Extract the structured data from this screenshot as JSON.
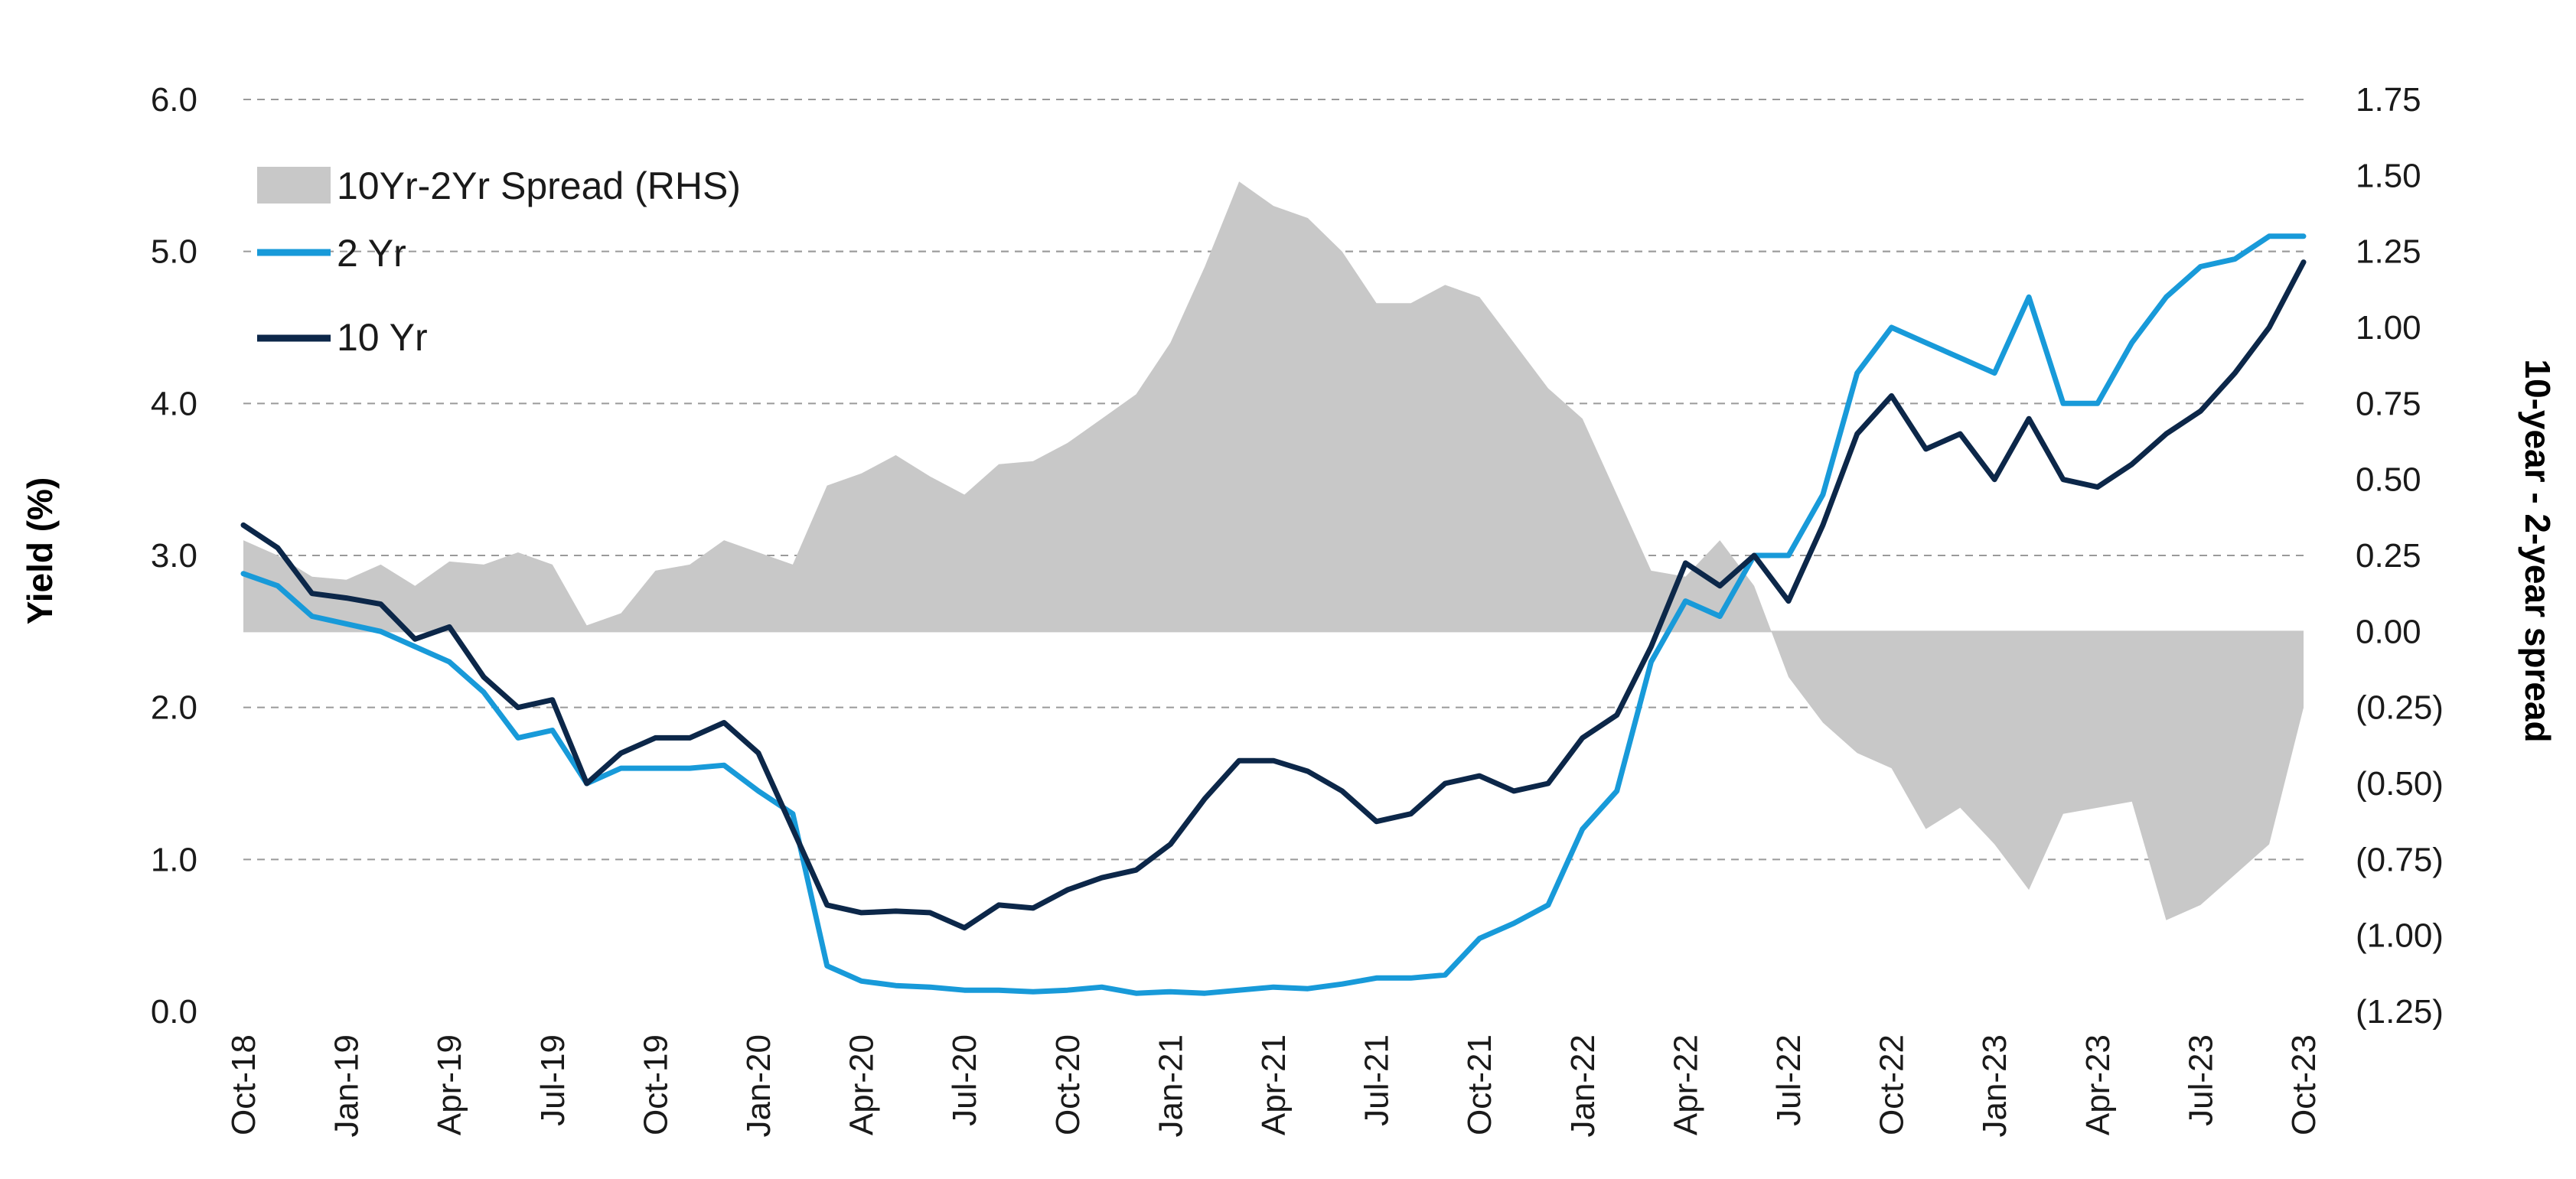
{
  "chart_data": {
    "type": "line",
    "legend_placement": "top-left",
    "grid": true,
    "y_left": {
      "label": "Yield (%)",
      "range": [
        0,
        6
      ],
      "ticks": [
        0,
        1,
        2,
        3,
        4,
        5,
        6
      ],
      "tick_labels": [
        "0.0",
        "1.0",
        "2.0",
        "3.0",
        "4.0",
        "5.0",
        "6.0"
      ]
    },
    "y_right": {
      "label": "10-year - 2-year spread",
      "range": [
        -1.25,
        1.75
      ],
      "ticks": [
        1.75,
        1.5,
        1.25,
        1.0,
        0.75,
        0.5,
        0.25,
        0.0,
        -0.25,
        -0.5,
        -0.75,
        -1.0,
        -1.25
      ],
      "tick_labels": [
        "1.75",
        "1.50",
        "1.25",
        "1.00",
        "0.75",
        "0.50",
        "0.25",
        "0.00",
        "(0.25)",
        "(0.50)",
        "(0.75)",
        "(1.00)",
        "(1.25)"
      ]
    },
    "x_axis": {
      "type": "date",
      "range": [
        "2018-10",
        "2023-10"
      ],
      "ticks": [
        "2018-10",
        "2019-01",
        "2019-04",
        "2019-07",
        "2019-10",
        "2020-01",
        "2020-04",
        "2020-07",
        "2020-10",
        "2021-01",
        "2021-04",
        "2021-07",
        "2021-10",
        "2022-01",
        "2022-04",
        "2022-07",
        "2022-10",
        "2023-01",
        "2023-04",
        "2023-07",
        "2023-10"
      ],
      "tick_labels": [
        "Oct-18",
        "Jan-19",
        "Apr-19",
        "Jul-19",
        "Oct-19",
        "Jan-20",
        "Apr-20",
        "Jul-20",
        "Oct-20",
        "Jan-21",
        "Apr-21",
        "Jul-21",
        "Oct-21",
        "Jan-22",
        "Apr-22",
        "Jul-22",
        "Oct-22",
        "Jan-23",
        "Apr-23",
        "Jul-23",
        "Oct-23"
      ]
    },
    "x": [
      "2018-10",
      "2018-11",
      "2018-12",
      "2019-01",
      "2019-02",
      "2019-03",
      "2019-04",
      "2019-05",
      "2019-06",
      "2019-07",
      "2019-08",
      "2019-09",
      "2019-10",
      "2019-11",
      "2019-12",
      "2020-01",
      "2020-02",
      "2020-03",
      "2020-04",
      "2020-05",
      "2020-06",
      "2020-07",
      "2020-08",
      "2020-09",
      "2020-10",
      "2020-11",
      "2020-12",
      "2021-01",
      "2021-02",
      "2021-03",
      "2021-04",
      "2021-05",
      "2021-06",
      "2021-07",
      "2021-08",
      "2021-09",
      "2021-10",
      "2021-11",
      "2021-12",
      "2022-01",
      "2022-02",
      "2022-03",
      "2022-04",
      "2022-05",
      "2022-06",
      "2022-07",
      "2022-08",
      "2022-09",
      "2022-10",
      "2022-11",
      "2022-12",
      "2023-01",
      "2023-02",
      "2023-03",
      "2023-04",
      "2023-05",
      "2023-06",
      "2023-07",
      "2023-08",
      "2023-09",
      "2023-10"
    ],
    "series": [
      {
        "name": "10Yr-2Yr Spread (RHS)",
        "type": "area",
        "axis": "right",
        "color": "#c8c8c8",
        "values": [
          0.3,
          0.25,
          0.18,
          0.17,
          0.22,
          0.15,
          0.23,
          0.22,
          0.26,
          0.22,
          0.02,
          0.06,
          0.2,
          0.22,
          0.3,
          0.26,
          0.22,
          0.48,
          0.52,
          0.58,
          0.51,
          0.45,
          0.55,
          0.56,
          0.62,
          0.7,
          0.78,
          0.95,
          1.2,
          1.48,
          1.4,
          1.36,
          1.25,
          1.08,
          1.08,
          1.14,
          1.1,
          0.95,
          0.8,
          0.7,
          0.45,
          0.2,
          0.18,
          0.3,
          0.15,
          -0.15,
          -0.3,
          -0.4,
          -0.45,
          -0.65,
          -0.58,
          -0.7,
          -0.85,
          -0.6,
          -0.58,
          -0.56,
          -0.95,
          -0.9,
          -0.8,
          -0.7,
          -0.25
        ]
      },
      {
        "name": "2 Yr",
        "type": "line",
        "axis": "left",
        "color": "#189ad9",
        "values": [
          2.88,
          2.8,
          2.6,
          2.55,
          2.5,
          2.4,
          2.3,
          2.1,
          1.8,
          1.85,
          1.5,
          1.6,
          1.6,
          1.6,
          1.62,
          1.45,
          1.3,
          0.3,
          0.2,
          0.17,
          0.16,
          0.14,
          0.14,
          0.13,
          0.14,
          0.16,
          0.12,
          0.13,
          0.12,
          0.14,
          0.16,
          0.15,
          0.18,
          0.22,
          0.22,
          0.24,
          0.48,
          0.58,
          0.7,
          1.2,
          1.45,
          2.3,
          2.7,
          2.6,
          3.0,
          3.0,
          3.4,
          4.2,
          4.5,
          4.4,
          4.3,
          4.2,
          4.7,
          4.0,
          4.0,
          4.4,
          4.7,
          4.9,
          4.95,
          5.1,
          5.1
        ]
      },
      {
        "name": "10 Yr",
        "type": "line",
        "axis": "left",
        "color": "#0c2749",
        "values": [
          3.2,
          3.05,
          2.75,
          2.72,
          2.68,
          2.45,
          2.53,
          2.2,
          2.0,
          2.05,
          1.5,
          1.7,
          1.8,
          1.8,
          1.9,
          1.7,
          1.2,
          0.7,
          0.65,
          0.66,
          0.65,
          0.55,
          0.7,
          0.68,
          0.8,
          0.88,
          0.93,
          1.1,
          1.4,
          1.65,
          1.65,
          1.58,
          1.45,
          1.25,
          1.3,
          1.5,
          1.55,
          1.45,
          1.5,
          1.8,
          1.95,
          2.4,
          2.95,
          2.8,
          3.0,
          2.7,
          3.2,
          3.8,
          4.05,
          3.7,
          3.8,
          3.5,
          3.9,
          3.5,
          3.45,
          3.6,
          3.8,
          3.95,
          4.2,
          4.5,
          4.93
        ]
      }
    ]
  }
}
